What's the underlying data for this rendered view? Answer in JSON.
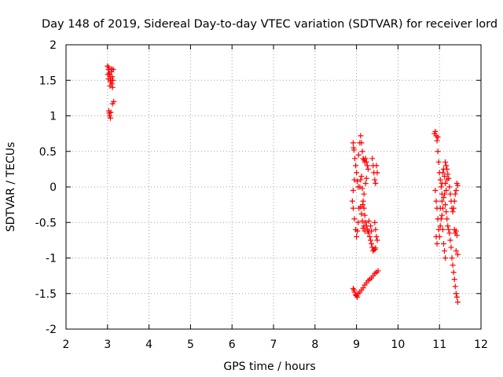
{
  "chart_data": {
    "type": "scatter",
    "title": "Day 148 of 2019, Sidereal Day-to-day VTEC variation (SDTVAR) for receiver lord",
    "xlabel": "GPS time / hours",
    "ylabel": "SDTVAR / TECUs",
    "xlim": [
      2,
      12
    ],
    "ylim": [
      -2,
      2
    ],
    "xticks": [
      "2",
      "3",
      "4",
      "5",
      "6",
      "7",
      "8",
      "9",
      "10",
      "11",
      "12"
    ],
    "yticks": [
      "2",
      "1.5",
      "1",
      "0.5",
      "0",
      "-0.5",
      "-1",
      "-1.5",
      "-2"
    ],
    "grid": true,
    "marker": "+",
    "marker_color": "#ff0000",
    "series": [
      {
        "points": [
          [
            3.0,
            1.7
          ],
          [
            3.02,
            1.65
          ],
          [
            3.04,
            1.6
          ],
          [
            3.06,
            1.55
          ],
          [
            3.08,
            1.5
          ],
          [
            3.1,
            1.45
          ],
          [
            3.12,
            1.4
          ],
          [
            3.03,
            1.68
          ],
          [
            3.05,
            1.58
          ],
          [
            3.07,
            1.48
          ],
          [
            3.09,
            1.62
          ],
          [
            3.11,
            1.55
          ],
          [
            3.13,
            1.5
          ],
          [
            3.02,
            1.52
          ],
          [
            3.06,
            1.42
          ],
          [
            3.14,
            1.65
          ],
          [
            3.15,
            1.2
          ],
          [
            3.12,
            1.17
          ],
          [
            3.03,
            1.07
          ],
          [
            3.05,
            1.0
          ],
          [
            3.07,
            0.97
          ],
          [
            3.04,
            1.04
          ],
          [
            3.08,
            1.05
          ],
          [
            3.01,
            1.58
          ],
          [
            3.1,
            1.66
          ]
        ]
      },
      {
        "points": [
          [
            8.92,
            0.62
          ],
          [
            8.94,
            0.52
          ],
          [
            8.96,
            0.4
          ],
          [
            8.98,
            0.3
          ],
          [
            9.0,
            0.2
          ],
          [
            9.02,
            0.08
          ],
          [
            9.04,
            0.0
          ],
          [
            8.93,
            0.55
          ],
          [
            9.05,
            0.45
          ],
          [
            9.08,
            0.62
          ],
          [
            9.1,
            0.72
          ],
          [
            9.12,
            0.62
          ],
          [
            9.14,
            0.5
          ],
          [
            9.16,
            0.4
          ],
          [
            9.18,
            0.38
          ],
          [
            9.2,
            0.35
          ],
          [
            9.22,
            0.4
          ],
          [
            9.24,
            0.35
          ],
          [
            9.26,
            0.3
          ],
          [
            9.28,
            0.25
          ],
          [
            8.95,
            0.1
          ],
          [
            8.92,
            -0.05
          ],
          [
            8.9,
            -0.2
          ],
          [
            8.92,
            -0.3
          ],
          [
            8.95,
            -0.45
          ],
          [
            8.98,
            -0.6
          ],
          [
            9.0,
            -0.7
          ],
          [
            9.02,
            -0.62
          ],
          [
            9.04,
            -0.5
          ],
          [
            9.06,
            -0.3
          ],
          [
            9.08,
            0.0
          ],
          [
            9.1,
            0.1
          ],
          [
            9.12,
            0.15
          ],
          [
            9.14,
            -0.02
          ],
          [
            9.16,
            -0.2
          ],
          [
            9.18,
            -0.3
          ],
          [
            9.2,
            -0.4
          ],
          [
            9.22,
            -0.5
          ],
          [
            9.24,
            -0.55
          ],
          [
            9.26,
            -0.6
          ],
          [
            9.28,
            -0.65
          ],
          [
            9.3,
            -0.62
          ],
          [
            9.32,
            -0.7
          ],
          [
            9.34,
            -0.75
          ],
          [
            9.36,
            -0.8
          ],
          [
            9.38,
            -0.85
          ],
          [
            9.4,
            -0.9
          ],
          [
            9.42,
            -0.88
          ],
          [
            9.44,
            -0.88
          ],
          [
            9.46,
            -0.86
          ],
          [
            9.1,
            -0.28
          ],
          [
            9.12,
            -0.38
          ],
          [
            9.14,
            -0.48
          ],
          [
            9.16,
            -0.58
          ],
          [
            9.18,
            -0.55
          ],
          [
            9.2,
            -0.62
          ],
          [
            9.15,
            -0.25
          ],
          [
            9.18,
            -0.1
          ],
          [
            9.22,
            0.05
          ],
          [
            9.24,
            0.12
          ],
          [
            9.38,
            0.4
          ],
          [
            9.4,
            0.3
          ],
          [
            9.42,
            0.2
          ],
          [
            9.44,
            0.1
          ],
          [
            9.46,
            0.05
          ],
          [
            9.48,
            0.3
          ],
          [
            9.5,
            0.2
          ],
          [
            9.44,
            -0.5
          ],
          [
            9.46,
            -0.6
          ],
          [
            9.48,
            -0.7
          ],
          [
            9.5,
            -0.75
          ],
          [
            9.3,
            -0.48
          ],
          [
            9.34,
            -0.55
          ],
          [
            9.36,
            -0.62
          ],
          [
            8.92,
            -1.43
          ],
          [
            8.95,
            -1.48
          ],
          [
            8.98,
            -1.52
          ],
          [
            9.0,
            -1.53
          ],
          [
            9.04,
            -1.5
          ],
          [
            9.08,
            -1.48
          ],
          [
            9.12,
            -1.45
          ],
          [
            9.16,
            -1.42
          ],
          [
            9.2,
            -1.38
          ],
          [
            9.24,
            -1.35
          ],
          [
            9.28,
            -1.32
          ],
          [
            9.32,
            -1.3
          ],
          [
            9.36,
            -1.28
          ],
          [
            9.4,
            -1.25
          ],
          [
            9.44,
            -1.22
          ],
          [
            9.48,
            -1.2
          ],
          [
            9.52,
            -1.18
          ],
          [
            8.94,
            -1.45
          ],
          [
            9.02,
            -1.55
          ]
        ]
      },
      {
        "points": [
          [
            10.88,
            0.75
          ],
          [
            10.9,
            0.78
          ],
          [
            10.92,
            0.72
          ],
          [
            10.94,
            0.65
          ],
          [
            10.96,
            0.5
          ],
          [
            10.98,
            0.35
          ],
          [
            11.0,
            0.2
          ],
          [
            11.02,
            0.1
          ],
          [
            11.04,
            0.0
          ],
          [
            11.06,
            -0.1
          ],
          [
            11.08,
            0.2
          ],
          [
            11.1,
            0.25
          ],
          [
            11.12,
            0.15
          ],
          [
            11.14,
            0.05
          ],
          [
            11.16,
            -0.05
          ],
          [
            11.18,
            0.1
          ],
          [
            11.2,
            0.18
          ],
          [
            11.22,
            0.12
          ],
          [
            11.24,
            0.0
          ],
          [
            11.26,
            -0.1
          ],
          [
            11.28,
            -0.2
          ],
          [
            11.3,
            -0.3
          ],
          [
            11.32,
            -0.35
          ],
          [
            11.34,
            -0.3
          ],
          [
            11.36,
            -0.2
          ],
          [
            11.38,
            -0.1
          ],
          [
            11.4,
            -0.05
          ],
          [
            11.42,
            0.05
          ],
          [
            11.44,
            0.02
          ],
          [
            10.9,
            -0.05
          ],
          [
            10.92,
            -0.2
          ],
          [
            10.94,
            -0.3
          ],
          [
            10.96,
            -0.45
          ],
          [
            10.98,
            -0.6
          ],
          [
            11.0,
            -0.7
          ],
          [
            11.02,
            -0.55
          ],
          [
            11.04,
            -0.45
          ],
          [
            11.06,
            -0.4
          ],
          [
            11.08,
            -0.6
          ],
          [
            11.1,
            -0.8
          ],
          [
            11.12,
            -0.9
          ],
          [
            11.14,
            -1.0
          ],
          [
            10.92,
            -0.7
          ],
          [
            10.94,
            -0.8
          ],
          [
            11.06,
            -0.2
          ],
          [
            11.08,
            -0.3
          ],
          [
            11.1,
            -0.15
          ],
          [
            11.12,
            -0.1
          ],
          [
            11.14,
            -0.25
          ],
          [
            11.16,
            -0.35
          ],
          [
            11.18,
            -0.45
          ],
          [
            11.2,
            -0.55
          ],
          [
            11.22,
            -0.6
          ],
          [
            11.24,
            -0.65
          ],
          [
            11.26,
            -0.75
          ],
          [
            11.28,
            -0.85
          ],
          [
            11.3,
            -1.0
          ],
          [
            11.32,
            -1.1
          ],
          [
            11.34,
            -1.2
          ],
          [
            11.36,
            -1.3
          ],
          [
            11.38,
            -1.4
          ],
          [
            11.4,
            -1.5
          ],
          [
            11.42,
            -1.55
          ],
          [
            11.44,
            -1.62
          ],
          [
            11.36,
            -0.6
          ],
          [
            11.38,
            -0.65
          ],
          [
            11.4,
            -0.62
          ],
          [
            11.42,
            -0.68
          ],
          [
            11.44,
            -0.95
          ],
          [
            11.4,
            -0.9
          ],
          [
            11.16,
            0.3
          ],
          [
            11.18,
            0.25
          ],
          [
            11.14,
            0.35
          ],
          [
            10.96,
            0.7
          ],
          [
            11.06,
            0.05
          ],
          [
            11.02,
            -0.3
          ]
        ]
      }
    ]
  }
}
